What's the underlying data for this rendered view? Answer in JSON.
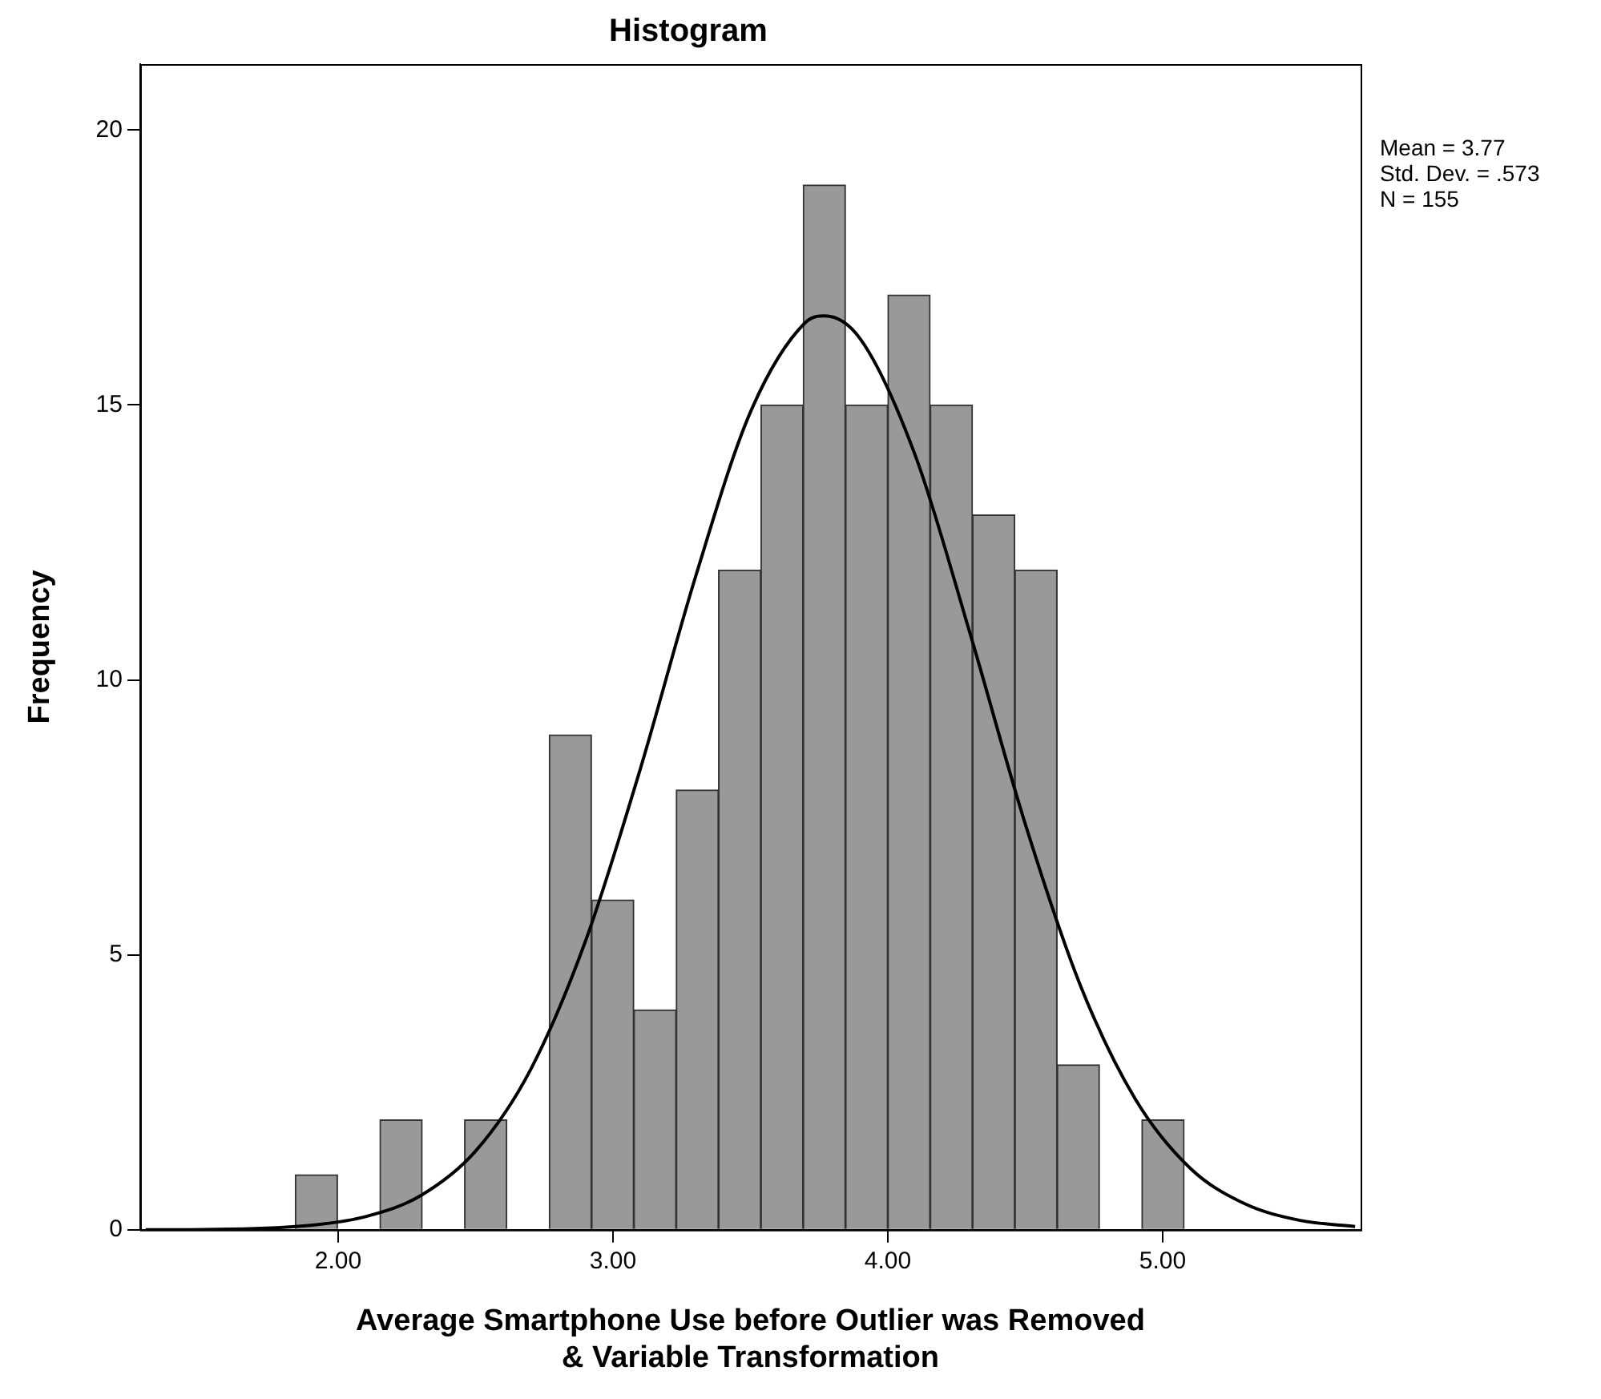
{
  "chart_data": {
    "type": "histogram",
    "title": "Histogram",
    "xlabel": "Average Smartphone Use before Outlier was Removed\n& Variable Transformation",
    "ylabel": "Frequency",
    "bins": [
      1.844,
      1.998,
      2.152,
      2.306,
      2.46,
      2.614,
      2.768,
      2.922,
      3.076,
      3.23,
      3.384,
      3.538,
      3.692,
      3.846,
      4.0,
      4.154,
      4.308,
      4.462,
      4.616,
      4.77,
      4.924,
      5.078
    ],
    "values": [
      1,
      0,
      2,
      0,
      2,
      0,
      9,
      6,
      4,
      8,
      12,
      15,
      19,
      15,
      17,
      15,
      13,
      12,
      3,
      0,
      2
    ],
    "color": "#999999",
    "series": [
      {
        "type": "line",
        "color": "#000000",
        "x": [
          1.3,
          1.6,
          1.9,
          2.1,
          2.3,
          2.5,
          2.7,
          2.9,
          3.1,
          3.3,
          3.5,
          3.7,
          3.77,
          3.9,
          4.1,
          4.3,
          4.5,
          4.7,
          4.9,
          5.1,
          5.3,
          5.5,
          5.7
        ],
        "values": [
          0.0,
          0.01,
          0.08,
          0.24,
          0.62,
          1.43,
          2.91,
          5.25,
          8.39,
          11.87,
          14.87,
          16.5,
          16.62,
          16.2,
          14.08,
          10.83,
          7.38,
          4.45,
          2.38,
          1.12,
          0.47,
          0.17,
          0.06
        ]
      }
    ],
    "xlim": [
      1.28,
      5.72
    ],
    "xticks": [
      {
        "value": 2,
        "label": "2.00"
      },
      {
        "value": 3,
        "label": "3.00"
      },
      {
        "value": 4,
        "label": "4.00"
      },
      {
        "value": 5,
        "label": "5.00"
      }
    ],
    "ylim": [
      0,
      21.2
    ],
    "yticks": [
      0,
      5,
      10,
      15,
      20
    ],
    "marker": "none",
    "annotations": [
      "Mean = 3.77",
      "Std. Dev. = .573",
      "N = 155"
    ]
  }
}
